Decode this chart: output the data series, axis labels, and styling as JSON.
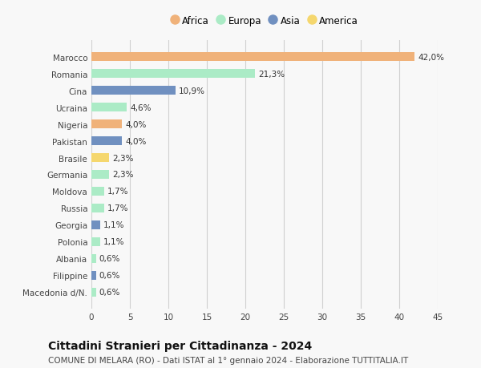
{
  "countries": [
    "Marocco",
    "Romania",
    "Cina",
    "Ucraina",
    "Nigeria",
    "Pakistan",
    "Brasile",
    "Germania",
    "Moldova",
    "Russia",
    "Georgia",
    "Polonia",
    "Albania",
    "Filippine",
    "Macedonia d/N."
  ],
  "values": [
    42.0,
    21.3,
    10.9,
    4.6,
    4.0,
    4.0,
    2.3,
    2.3,
    1.7,
    1.7,
    1.1,
    1.1,
    0.6,
    0.6,
    0.6
  ],
  "labels": [
    "42,0%",
    "21,3%",
    "10,9%",
    "4,6%",
    "4,0%",
    "4,0%",
    "2,3%",
    "2,3%",
    "1,7%",
    "1,7%",
    "1,1%",
    "1,1%",
    "0,6%",
    "0,6%",
    "0,6%"
  ],
  "continents": [
    "Africa",
    "Europa",
    "Asia",
    "Europa",
    "Africa",
    "Asia",
    "America",
    "Europa",
    "Europa",
    "Europa",
    "Asia",
    "Europa",
    "Europa",
    "Asia",
    "Europa"
  ],
  "colors": {
    "Africa": "#F0B27A",
    "Europa": "#ABEBC6",
    "Asia": "#7090C0",
    "America": "#F5D76E"
  },
  "legend_order": [
    "Africa",
    "Europa",
    "Asia",
    "America"
  ],
  "xlim": [
    0,
    45
  ],
  "xticks": [
    0,
    5,
    10,
    15,
    20,
    25,
    30,
    35,
    40,
    45
  ],
  "title": "Cittadini Stranieri per Cittadinanza - 2024",
  "subtitle": "COMUNE DI MELARA (RO) - Dati ISTAT al 1° gennaio 2024 - Elaborazione TUTTITALIA.IT",
  "background_color": "#f8f8f8",
  "grid_color": "#d0d0d0",
  "bar_height": 0.55,
  "label_fontsize": 7.5,
  "tick_fontsize": 7.5,
  "title_fontsize": 10,
  "subtitle_fontsize": 7.5
}
